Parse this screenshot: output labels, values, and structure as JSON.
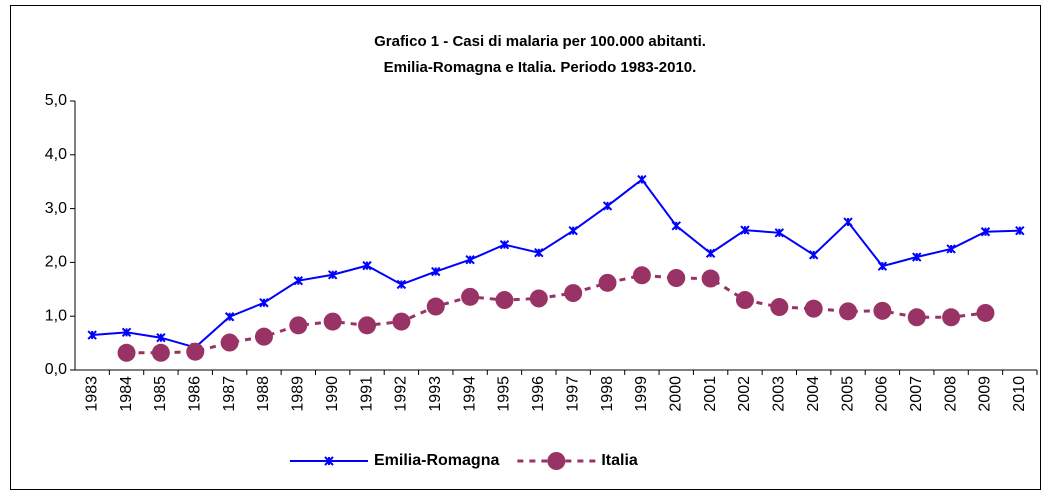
{
  "chart_data": {
    "type": "line",
    "title": "Grafico 1 - Casi di malaria per 100.000 abitanti.",
    "subtitle": "Emilia-Romagna e Italia. Periodo 1983-2010.",
    "categories": [
      "1983",
      "1984",
      "1985",
      "1986",
      "1987",
      "1988",
      "1989",
      "1990",
      "1991",
      "1992",
      "1993",
      "1994",
      "1995",
      "1996",
      "1997",
      "1998",
      "1999",
      "2000",
      "2001",
      "2002",
      "2003",
      "2004",
      "2005",
      "2006",
      "2007",
      "2008",
      "2009",
      "2010"
    ],
    "series": [
      {
        "name": "Emilia-Romagna",
        "color": "#0000ff",
        "marker": "star",
        "dash": false,
        "values": [
          0.65,
          0.7,
          0.6,
          0.42,
          0.99,
          1.25,
          1.66,
          1.77,
          1.94,
          1.59,
          1.83,
          2.05,
          2.33,
          2.18,
          2.59,
          3.05,
          3.54,
          2.68,
          2.17,
          2.6,
          2.55,
          2.14,
          2.75,
          1.93,
          2.1,
          2.25,
          2.57,
          2.59
        ]
      },
      {
        "name": "Italia",
        "color": "#993366",
        "marker": "circle",
        "dash": true,
        "values": [
          null,
          0.32,
          0.32,
          0.34,
          0.51,
          0.62,
          0.83,
          0.9,
          0.83,
          0.9,
          1.18,
          1.36,
          1.3,
          1.33,
          1.43,
          1.62,
          1.76,
          1.71,
          1.7,
          1.3,
          1.17,
          1.14,
          1.09,
          1.1,
          0.98,
          0.98,
          1.06,
          null
        ]
      }
    ],
    "ylim": [
      0,
      5
    ],
    "yticks": [
      {
        "value": 0,
        "label": "0,0"
      },
      {
        "value": 1,
        "label": "1,0"
      },
      {
        "value": 2,
        "label": "2,0"
      },
      {
        "value": 3,
        "label": "3,0"
      },
      {
        "value": 4,
        "label": "4,0"
      },
      {
        "value": 5,
        "label": "5,0"
      }
    ],
    "grid": false,
    "legend": "bottom"
  }
}
